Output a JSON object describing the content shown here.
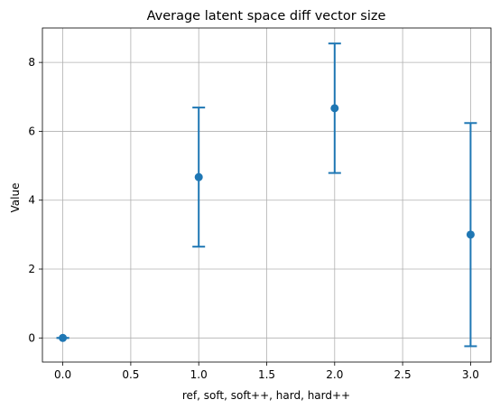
{
  "chart_data": {
    "type": "scatter",
    "title": "Average latent space diff vector size",
    "xlabel": "ref, soft, soft++, hard, hard++",
    "ylabel": "Value",
    "xlim": [
      -0.15,
      3.15
    ],
    "ylim": [
      -0.7,
      9.0
    ],
    "xticks": [
      0.0,
      0.5,
      1.0,
      1.5,
      2.0,
      2.5,
      3.0
    ],
    "xtick_labels": [
      "0.0",
      "0.5",
      "1.0",
      "1.5",
      "2.0",
      "2.5",
      "3.0"
    ],
    "yticks": [
      0,
      2,
      4,
      6,
      8
    ],
    "ytick_labels": [
      "0",
      "2",
      "4",
      "6",
      "8"
    ],
    "grid": true,
    "color": "#1f77b4",
    "points": [
      {
        "x": 0,
        "y": 0.0,
        "err": 0.0
      },
      {
        "x": 1,
        "y": 4.67,
        "err": 2.02
      },
      {
        "x": 2,
        "y": 6.67,
        "err": 1.88
      },
      {
        "x": 3,
        "y": 3.0,
        "err": 3.24
      }
    ]
  }
}
